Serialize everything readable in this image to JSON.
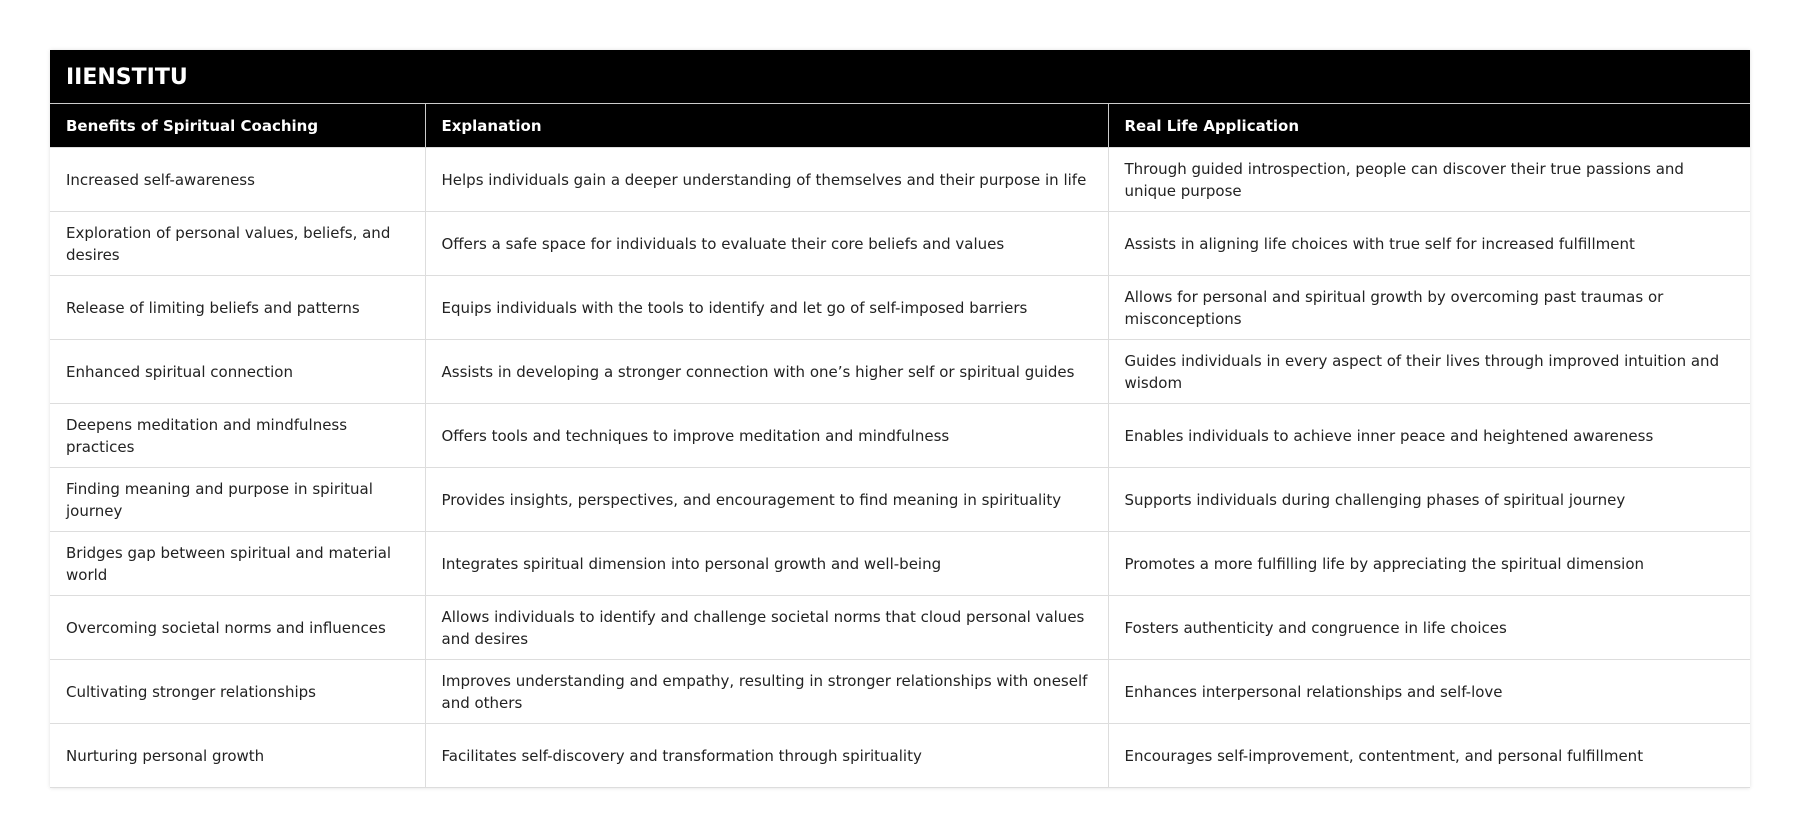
{
  "title": "IIENSTITU",
  "headers": [
    "Benefits of Spiritual Coaching",
    "Explanation",
    "Real Life Application"
  ],
  "rows": [
    [
      "Increased self-awareness",
      "Helps individuals gain a deeper understanding of themselves and their purpose in life",
      "Through guided introspection, people can discover their true passions and unique purpose"
    ],
    [
      "Exploration of personal values, beliefs, and desires",
      "Offers a safe space for individuals to evaluate their core beliefs and values",
      "Assists in aligning life choices with true self for increased fulfillment"
    ],
    [
      "Release of limiting beliefs and patterns",
      "Equips individuals with the tools to identify and let go of self-imposed barriers",
      "Allows for personal and spiritual growth by overcoming past traumas or misconceptions"
    ],
    [
      "Enhanced spiritual connection",
      "Assists in developing a stronger connection with one’s higher self or spiritual guides",
      "Guides individuals in every aspect of their lives through improved intuition and wisdom"
    ],
    [
      "Deepens meditation and mindfulness practices",
      "Offers tools and techniques to improve meditation and mindfulness",
      "Enables individuals to achieve inner peace and heightened awareness"
    ],
    [
      "Finding meaning and purpose in spiritual journey",
      "Provides insights, perspectives, and encouragement to find meaning in spirituality",
      "Supports individuals during challenging phases of spiritual journey"
    ],
    [
      "Bridges gap between spiritual and material world",
      "Integrates spiritual dimension into personal growth and well-being",
      "Promotes a more fulfilling life by appreciating the spiritual dimension"
    ],
    [
      "Overcoming societal norms and influences",
      "Allows individuals to identify and challenge societal norms that cloud personal values and desires",
      "Fosters authenticity and congruence in life choices"
    ],
    [
      "Cultivating stronger relationships",
      "Improves understanding and empathy, resulting in stronger relationships with oneself and others",
      "Enhances interpersonal relationships and self-love"
    ],
    [
      "Nurturing personal growth",
      "Facilitates self-discovery and transformation through spirituality",
      "Encourages self-improvement, contentment, and personal fulfillment"
    ]
  ]
}
